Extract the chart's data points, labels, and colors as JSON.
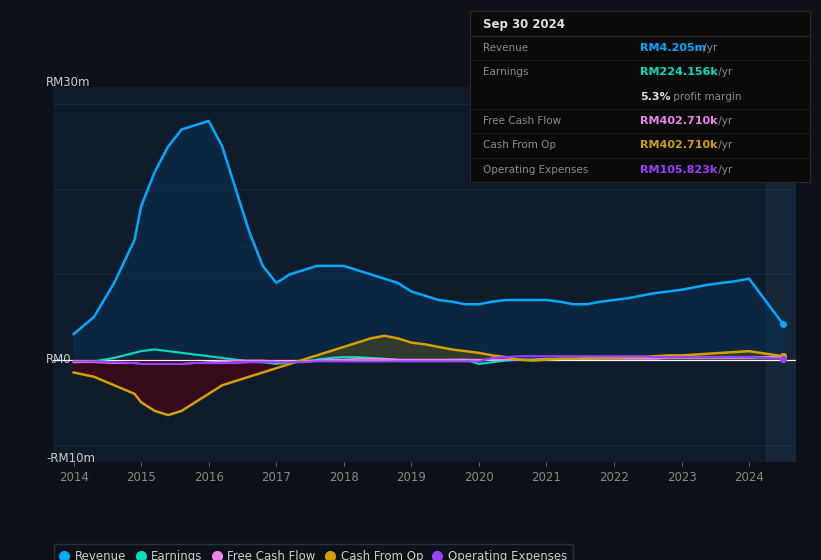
{
  "bg_color": "#0d1117",
  "plot_bg_color": "#0d1b2a",
  "grid_color": "#1e3050",
  "ylim": [
    -12,
    32
  ],
  "ylabel_top": "RM30m",
  "ylabel_zero": "RM0",
  "ylabel_bottom": "-RM10m",
  "years": [
    2014.0,
    2014.3,
    2014.6,
    2014.9,
    2015.0,
    2015.2,
    2015.4,
    2015.6,
    2015.8,
    2016.0,
    2016.2,
    2016.4,
    2016.6,
    2016.8,
    2017.0,
    2017.2,
    2017.4,
    2017.6,
    2017.8,
    2018.0,
    2018.2,
    2018.4,
    2018.6,
    2018.8,
    2019.0,
    2019.2,
    2019.4,
    2019.6,
    2019.8,
    2020.0,
    2020.2,
    2020.4,
    2020.6,
    2020.8,
    2021.0,
    2021.2,
    2021.4,
    2021.6,
    2021.8,
    2022.0,
    2022.2,
    2022.4,
    2022.6,
    2022.8,
    2023.0,
    2023.2,
    2023.4,
    2023.6,
    2023.8,
    2024.0,
    2024.5
  ],
  "revenue": [
    3,
    5,
    9,
    14,
    18,
    22,
    25,
    27,
    27.5,
    28,
    25,
    20,
    15,
    11,
    9,
    10,
    10.5,
    11,
    11,
    11,
    10.5,
    10,
    9.5,
    9,
    8,
    7.5,
    7,
    6.8,
    6.5,
    6.5,
    6.8,
    7,
    7,
    7,
    7,
    6.8,
    6.5,
    6.5,
    6.8,
    7,
    7.2,
    7.5,
    7.8,
    8,
    8.2,
    8.5,
    8.8,
    9,
    9.2,
    9.5,
    4.2
  ],
  "earnings": [
    -0.3,
    -0.2,
    0.2,
    0.8,
    1.0,
    1.2,
    1.0,
    0.8,
    0.6,
    0.4,
    0.2,
    0.0,
    -0.2,
    -0.3,
    -0.5,
    -0.3,
    -0.2,
    0.0,
    0.2,
    0.3,
    0.3,
    0.2,
    0.1,
    0.0,
    -0.1,
    -0.1,
    -0.1,
    0.0,
    0.0,
    -0.5,
    -0.3,
    -0.1,
    0.0,
    0.0,
    0.1,
    0.1,
    0.1,
    0.1,
    0.2,
    0.2,
    0.2,
    0.3,
    0.3,
    0.3,
    0.3,
    0.3,
    0.3,
    0.3,
    0.3,
    0.3,
    0.22
  ],
  "free_cash_flow": [
    -0.3,
    -0.3,
    -0.4,
    -0.4,
    -0.5,
    -0.5,
    -0.5,
    -0.5,
    -0.4,
    -0.3,
    -0.2,
    -0.1,
    -0.1,
    -0.1,
    -0.2,
    -0.2,
    -0.2,
    -0.1,
    0.0,
    0.0,
    0.1,
    0.1,
    0.1,
    0.0,
    0.0,
    0.0,
    0.0,
    0.0,
    0.0,
    0.0,
    0.0,
    0.0,
    0.0,
    0.0,
    0.1,
    0.1,
    0.1,
    0.1,
    0.1,
    0.1,
    0.1,
    0.1,
    0.1,
    0.2,
    0.2,
    0.2,
    0.2,
    0.2,
    0.2,
    0.2,
    0.4
  ],
  "cash_from_op": [
    -1.5,
    -2.0,
    -3.0,
    -4.0,
    -5.0,
    -6.0,
    -6.5,
    -6.0,
    -5.0,
    -4.0,
    -3.0,
    -2.5,
    -2.0,
    -1.5,
    -1.0,
    -0.5,
    0.0,
    0.5,
    1.0,
    1.5,
    2.0,
    2.5,
    2.8,
    2.5,
    2.0,
    1.8,
    1.5,
    1.2,
    1.0,
    0.8,
    0.5,
    0.3,
    0.0,
    -0.1,
    0.0,
    0.1,
    0.1,
    0.2,
    0.2,
    0.2,
    0.3,
    0.3,
    0.4,
    0.5,
    0.5,
    0.6,
    0.7,
    0.8,
    0.9,
    1.0,
    0.4
  ],
  "operating_expenses": [
    -0.2,
    -0.2,
    -0.3,
    -0.4,
    -0.5,
    -0.5,
    -0.5,
    -0.5,
    -0.4,
    -0.4,
    -0.4,
    -0.4,
    -0.3,
    -0.3,
    -0.3,
    -0.3,
    -0.3,
    -0.2,
    -0.2,
    -0.2,
    -0.2,
    -0.2,
    -0.2,
    -0.2,
    -0.2,
    -0.2,
    -0.2,
    -0.2,
    -0.2,
    -0.2,
    0.2,
    0.3,
    0.4,
    0.4,
    0.4,
    0.4,
    0.4,
    0.4,
    0.4,
    0.4,
    0.4,
    0.4,
    0.3,
    0.3,
    0.3,
    0.3,
    0.3,
    0.3,
    0.3,
    0.3,
    0.1
  ],
  "revenue_color": "#00aaff",
  "earnings_color": "#00e0c0",
  "free_cash_flow_color": "#ee82ee",
  "cash_from_op_color": "#d4a000",
  "operating_expenses_color": "#9b40ff",
  "revenue_fill_color": "#0d1b2a",
  "neg_fill_color": "#5a0a20",
  "cashop_pos_fill": "#555522",
  "info_box": {
    "date": "Sep 30 2024",
    "revenue_label": "Revenue",
    "revenue_value": "RM4.205m",
    "revenue_unit": " /yr",
    "earnings_label": "Earnings",
    "earnings_value": "RM224.156k",
    "earnings_unit": " /yr",
    "margin_value": "5.3%",
    "margin_text": " profit margin",
    "fcf_label": "Free Cash Flow",
    "fcf_value": "RM402.710k",
    "fcf_unit": " /yr",
    "cashop_label": "Cash From Op",
    "cashop_value": "RM402.710k",
    "cashop_unit": " /yr",
    "opex_label": "Operating Expenses",
    "opex_value": "RM105.823k",
    "opex_unit": " /yr"
  },
  "xticks": [
    2014,
    2015,
    2016,
    2017,
    2018,
    2019,
    2020,
    2021,
    2022,
    2023,
    2024
  ]
}
